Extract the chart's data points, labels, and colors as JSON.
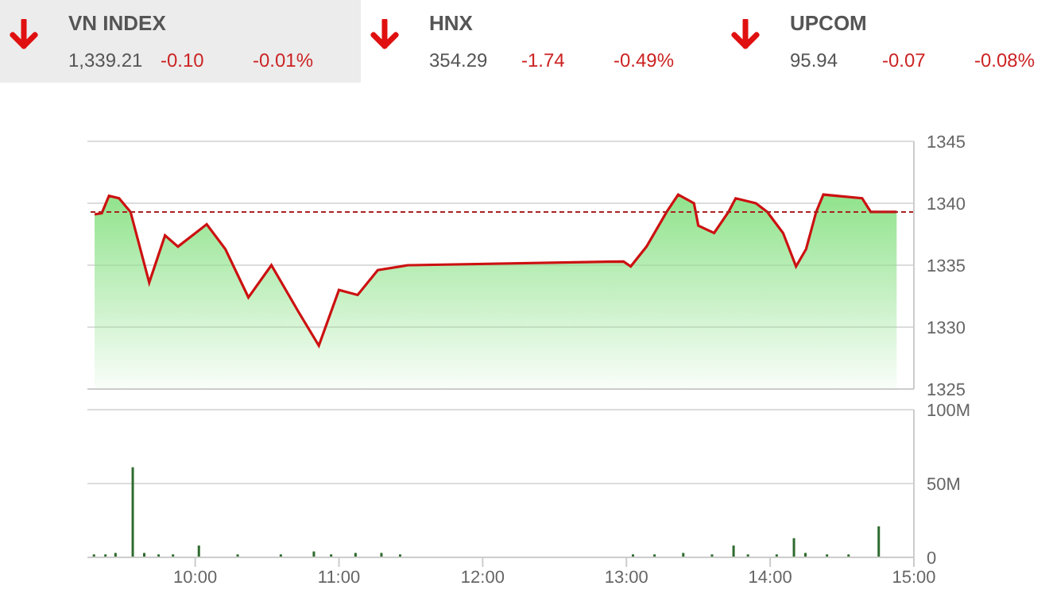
{
  "chart_data": [
    {
      "type": "area",
      "annotations": [
        "VN INDEX",
        "1,339.21",
        "-0.10",
        "-0.01%",
        "HNX",
        "354.29",
        "-1.74",
        "-0.49%",
        "UPCOM",
        "95.94",
        "-0.07",
        "-0.08%"
      ],
      "x": [
        9.3,
        9.35,
        9.4,
        9.47,
        9.55,
        9.68,
        9.79,
        9.88,
        10.08,
        10.21,
        10.37,
        10.53,
        10.72,
        10.86,
        11.0,
        11.13,
        11.27,
        11.48,
        11.5,
        12.98,
        13.03,
        13.14,
        13.28,
        13.36,
        13.47,
        13.5,
        13.61,
        13.71,
        13.76,
        13.9,
        13.98,
        14.09,
        14.18,
        14.25,
        14.32,
        14.37,
        14.64,
        14.7,
        14.88
      ],
      "series": [
        {
          "color": "#90e38c",
          "values": [
            1339.1,
            1339.2,
            1340.6,
            1340.4,
            1339.3,
            1333.6,
            1337.4,
            1336.5,
            1338.3,
            1336.3,
            1332.4,
            1335,
            1331.2,
            1328.5,
            1333,
            1332.6,
            1334.6,
            1335,
            1335,
            1335.3,
            1334.9,
            1336.5,
            1339.3,
            1340.7,
            1340,
            1338.2,
            1337.6,
            1339.3,
            1340.4,
            1340,
            1339.3,
            1337.6,
            1334.9,
            1336.3,
            1339.3,
            1340.7,
            1340.4,
            1339.3,
            1339.3
          ]
        }
      ],
      "xlim": [
        9.25,
        15
      ],
      "ylim": [
        1325,
        1345
      ],
      "yticks": [
        1325,
        1330,
        1335,
        1340,
        1345
      ],
      "grid": "y",
      "tick_labels": "y",
      "ref_lines": [
        {
          "axis": "y",
          "value": 1339.3,
          "color": "#aa2222",
          "line_style": "dashed"
        }
      ]
    },
    {
      "type": "bar",
      "x": [
        9.3,
        9.38,
        9.45,
        9.57,
        9.65,
        9.75,
        9.85,
        10.03,
        10.3,
        10.6,
        10.83,
        10.95,
        11.12,
        11.3,
        11.43,
        13.05,
        13.2,
        13.4,
        13.6,
        13.75,
        13.85,
        14.05,
        14.17,
        14.25,
        14.4,
        14.55,
        14.76
      ],
      "series": [
        {
          "color": "#2e6b2e",
          "values": [
            2,
            2,
            3,
            61,
            3,
            2,
            2,
            8,
            2,
            2,
            4,
            2,
            3,
            3,
            2,
            2,
            2,
            3,
            2,
            8,
            2,
            2,
            13,
            3,
            2,
            2,
            21
          ]
        }
      ],
      "xlim": [
        9.25,
        15
      ],
      "xticks": [
        {
          "value": 10,
          "label": "10:00"
        },
        {
          "value": 11,
          "label": "11:00"
        },
        {
          "value": 12,
          "label": "12:00"
        },
        {
          "value": 13,
          "label": "13:00"
        },
        {
          "value": 14,
          "label": "14:00"
        },
        {
          "value": 15,
          "label": "15:00"
        }
      ],
      "ylim": [
        0,
        100
      ],
      "yticks": [
        0,
        {
          "value": 50,
          "label": "50M"
        },
        {
          "value": 100,
          "label": "100M"
        }
      ],
      "grid": "y"
    }
  ]
}
